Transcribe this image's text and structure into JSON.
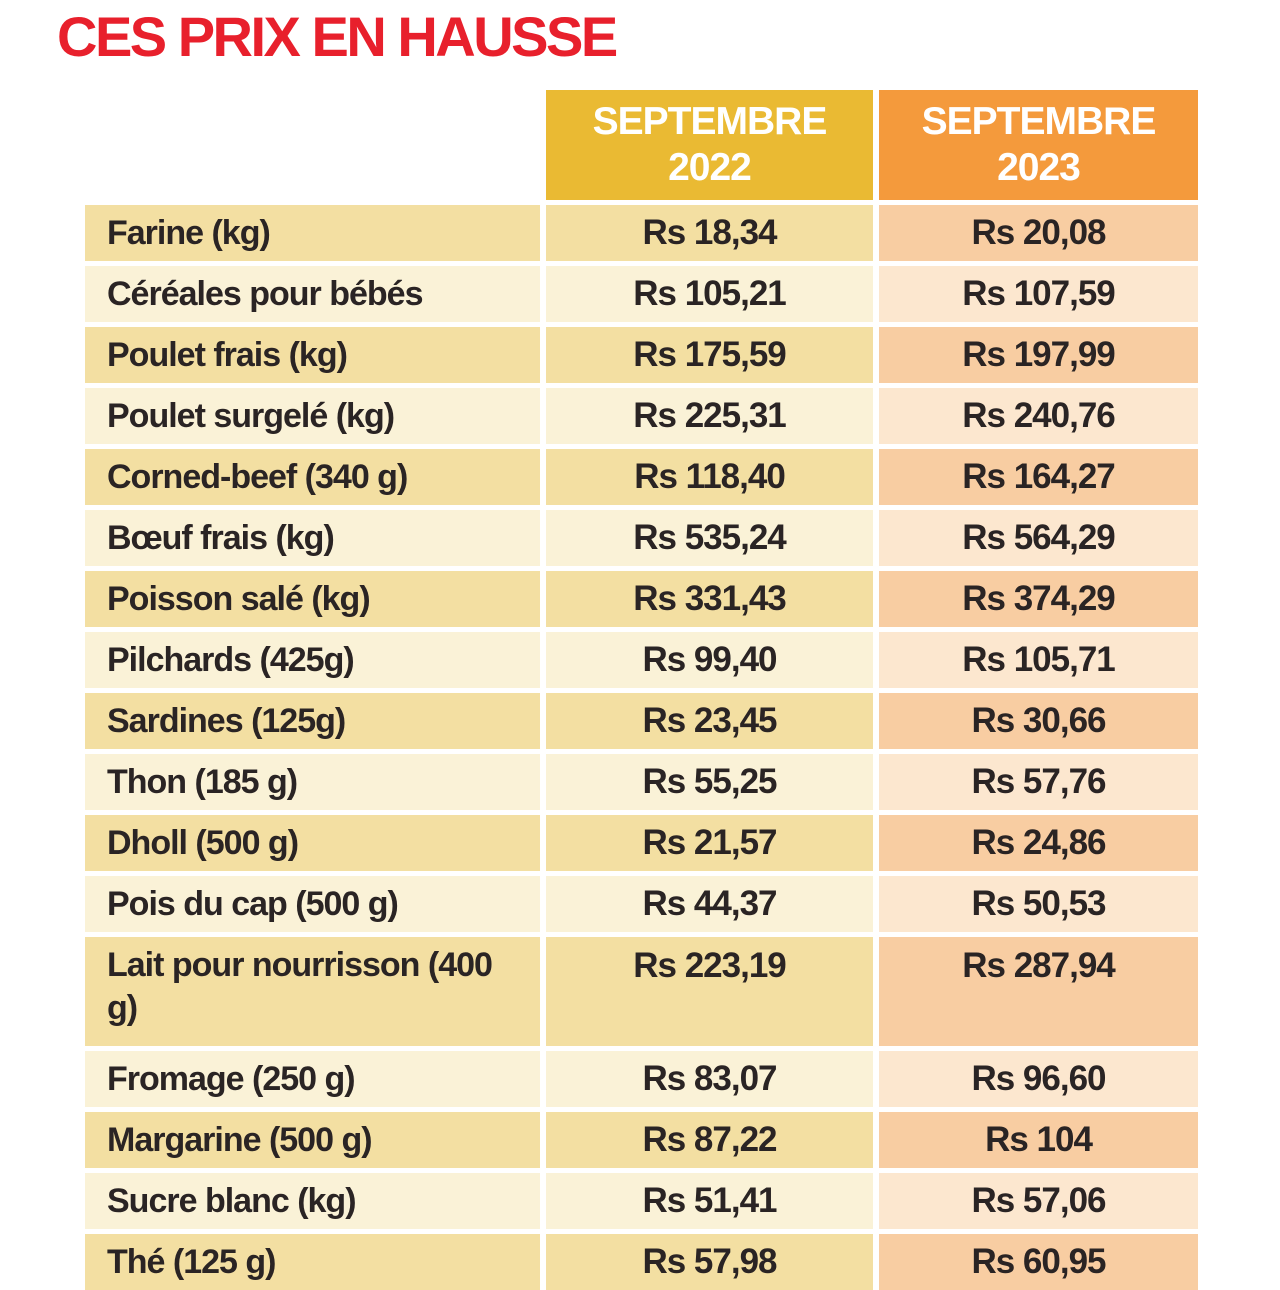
{
  "title": "CES PRIX EN HAUSSE",
  "currency_prefix": "Rs",
  "header": {
    "col_2022": {
      "line1": "SEPTEMBRE",
      "line2": "2022"
    },
    "col_2023": {
      "line1": "SEPTEMBRE",
      "line2": "2023"
    }
  },
  "chart_data": {
    "type": "table",
    "title": "CES PRIX EN HAUSSE",
    "columns": [
      "",
      "SEPTEMBRE 2022",
      "SEPTEMBRE 2023"
    ],
    "rows": [
      {
        "item": "Farine (kg)",
        "sep_2022": "Rs 18,34",
        "sep_2023": "Rs 20,08"
      },
      {
        "item": "Céréales pour bébés",
        "sep_2022": "Rs 105,21",
        "sep_2023": "Rs 107,59"
      },
      {
        "item": "Poulet frais (kg)",
        "sep_2022": "Rs 175,59",
        "sep_2023": "Rs 197,99"
      },
      {
        "item": "Poulet surgelé (kg)",
        "sep_2022": "Rs 225,31",
        "sep_2023": "Rs 240,76"
      },
      {
        "item": "Corned-beef (340 g)",
        "sep_2022": "Rs 118,40",
        "sep_2023": "Rs 164,27"
      },
      {
        "item": "Bœuf frais (kg)",
        "sep_2022": "Rs 535,24",
        "sep_2023": "Rs 564,29"
      },
      {
        "item": "Poisson salé (kg)",
        "sep_2022": "Rs 331,43",
        "sep_2023": "Rs 374,29"
      },
      {
        "item": "Pilchards (425g)",
        "sep_2022": "Rs 99,40",
        "sep_2023": "Rs 105,71"
      },
      {
        "item": "Sardines (125g)",
        "sep_2022": "Rs 23,45",
        "sep_2023": "Rs 30,66"
      },
      {
        "item": "Thon (185 g)",
        "sep_2022": "Rs 55,25",
        "sep_2023": "Rs 57,76"
      },
      {
        "item": "Dholl (500 g)",
        "sep_2022": "Rs 21,57",
        "sep_2023": "Rs 24,86"
      },
      {
        "item": "Pois du cap (500 g)",
        "sep_2022": "Rs 44,37",
        "sep_2023": "Rs 50,53"
      },
      {
        "item": "Lait pour nourrisson (400 g)",
        "sep_2022": "Rs 223,19",
        "sep_2023": "Rs 287,94"
      },
      {
        "item": "Fromage (250 g)",
        "sep_2022": "Rs 83,07",
        "sep_2023": "Rs 96,60"
      },
      {
        "item": "Margarine (500 g)",
        "sep_2022": "Rs 87,22",
        "sep_2023": "Rs 104"
      },
      {
        "item": "Sucre blanc (kg)",
        "sep_2022": "Rs 51,41",
        "sep_2023": "Rs 57,06"
      },
      {
        "item": "Thé (125 g)",
        "sep_2022": "Rs 57,98",
        "sep_2023": "Rs 60,95"
      }
    ]
  },
  "colors": {
    "page_bg": "#ffffff",
    "title_red": "#e8202c",
    "header_2022_bg": "#eaba33",
    "header_2023_bg": "#f49a3c",
    "header_text": "#ffffff",
    "row_dark_left_bg": "#f3dfa2",
    "row_light_left_bg": "#faf2d7",
    "row_dark_right_bg": "#f8cda2",
    "row_light_right_bg": "#fce7cf",
    "cell_text": "#2a2424"
  }
}
